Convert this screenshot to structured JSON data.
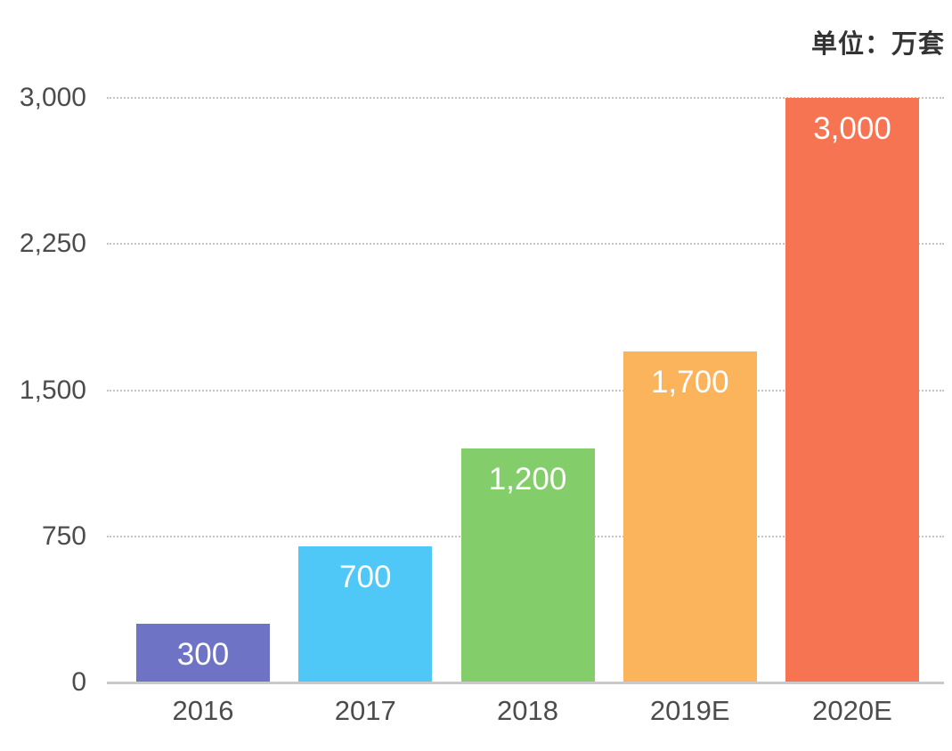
{
  "header": {
    "unit_label": "单位：万套"
  },
  "chart_data": {
    "type": "bar",
    "title": "",
    "subtitle": "",
    "unit": "单位：万套",
    "categories": [
      "2016",
      "2017",
      "2018",
      "2019E",
      "2020E"
    ],
    "values": [
      300,
      700,
      1200,
      1700,
      3000
    ],
    "value_labels": [
      "300",
      "700",
      "1,200",
      "1,700",
      "3,000"
    ],
    "bar_colors": [
      "#6f73c5",
      "#4fc8f7",
      "#83ce6a",
      "#fbb45b",
      "#f77452"
    ],
    "value_label_color": "#ffffff",
    "xlabel": "",
    "ylabel": "",
    "ylim": [
      0,
      3000
    ],
    "yticks": [
      0,
      750,
      1500,
      2250,
      3000
    ],
    "ytick_labels": [
      "0",
      "750",
      "1,500",
      "2,250",
      "3,000"
    ],
    "grid": "horizontal-dotted",
    "legend": "none",
    "axis_text_color": "#4c4c4c",
    "gridline_color": "#c3c3c3",
    "baseline_color": "#c9c9c9"
  }
}
